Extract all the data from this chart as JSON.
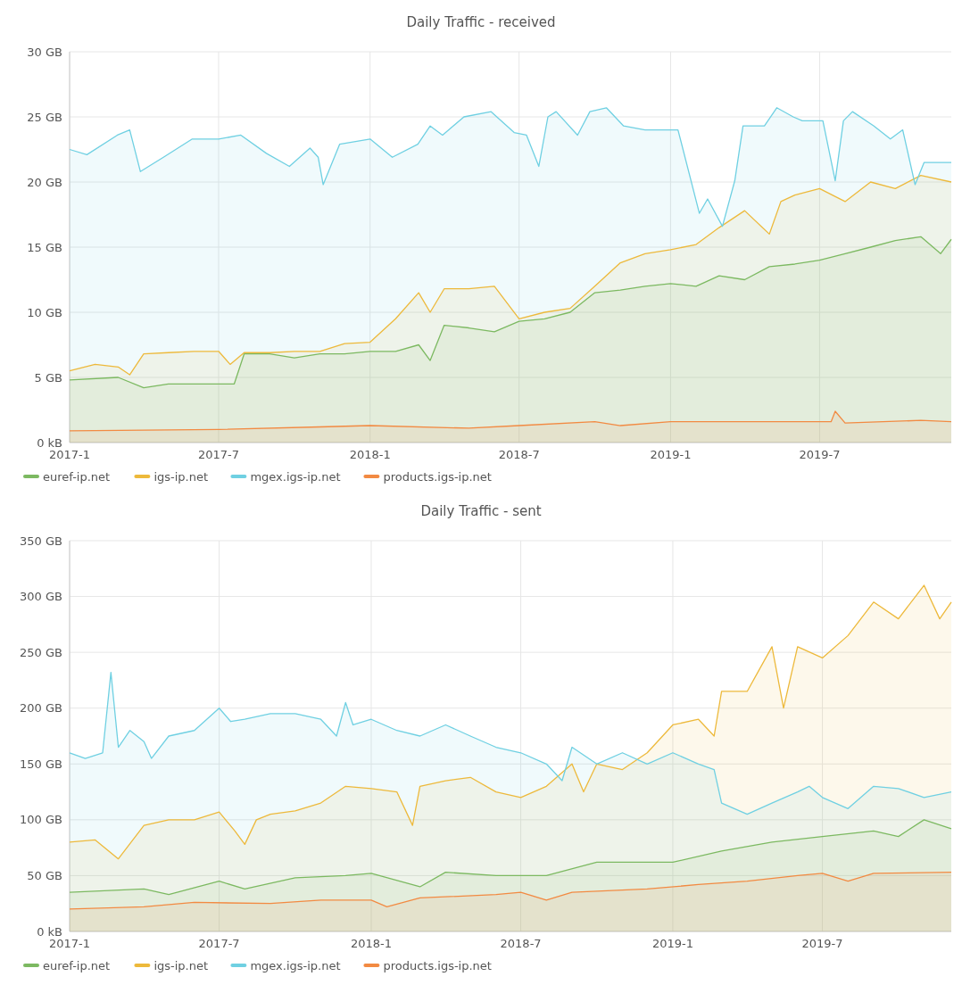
{
  "chart_data": [
    {
      "type": "area",
      "title": "Daily Traffic - received",
      "xlim": [
        "2017-01-01",
        "2019-12-08"
      ],
      "ylim": [
        0,
        30
      ],
      "xticks": [
        {
          "value": "2017-01-01",
          "label": "2017-1"
        },
        {
          "value": "2017-07-01",
          "label": "2017-7"
        },
        {
          "value": "2018-01-01",
          "label": "2018-1"
        },
        {
          "value": "2018-07-01",
          "label": "2018-7"
        },
        {
          "value": "2019-01-01",
          "label": "2019-1"
        },
        {
          "value": "2019-07-01",
          "label": "2019-7"
        }
      ],
      "yticks": [
        {
          "value": 0,
          "label": "0 kB"
        },
        {
          "value": 5,
          "label": "5 GB"
        },
        {
          "value": 10,
          "label": "10 GB"
        },
        {
          "value": 15,
          "label": "15 GB"
        },
        {
          "value": 20,
          "label": "20 GB"
        },
        {
          "value": 25,
          "label": "25 GB"
        },
        {
          "value": 30,
          "label": "30 GB"
        }
      ],
      "grid": true,
      "legend": "bottom",
      "marker": "none",
      "line_style": "solid",
      "series": [
        {
          "name": "euref-ip.net",
          "color": "#7cb961",
          "x": [
            "2017-01-01",
            "2017-03-01",
            "2017-04-01",
            "2017-05-01",
            "2017-06-01",
            "2017-07-20",
            "2017-08-01",
            "2017-09-01",
            "2017-10-01",
            "2017-11-01",
            "2017-12-01",
            "2018-01-01",
            "2018-02-01",
            "2018-03-01",
            "2018-03-15",
            "2018-04-01",
            "2018-05-01",
            "2018-06-01",
            "2018-07-01",
            "2018-08-01",
            "2018-09-01",
            "2018-10-01",
            "2018-11-01",
            "2018-12-01",
            "2019-01-01",
            "2019-02-01",
            "2019-03-01",
            "2019-04-01",
            "2019-05-01",
            "2019-06-01",
            "2019-07-01",
            "2019-08-01",
            "2019-09-01",
            "2019-10-01",
            "2019-11-01",
            "2019-11-25",
            "2019-12-08"
          ],
          "values": [
            4.8,
            5.0,
            4.2,
            4.5,
            4.5,
            4.5,
            6.8,
            6.8,
            6.5,
            6.8,
            6.8,
            7.0,
            7.0,
            7.5,
            6.3,
            9.0,
            8.8,
            8.5,
            9.3,
            9.5,
            10.0,
            11.5,
            11.7,
            12.0,
            12.2,
            12.0,
            12.8,
            12.5,
            13.5,
            13.7,
            14.0,
            14.5,
            15.0,
            15.5,
            15.8,
            14.5,
            15.6
          ]
        },
        {
          "name": "igs-ip.net",
          "color": "#edb93b",
          "x": [
            "2017-01-01",
            "2017-02-01",
            "2017-03-01",
            "2017-03-15",
            "2017-04-01",
            "2017-05-01",
            "2017-06-01",
            "2017-07-01",
            "2017-07-15",
            "2017-08-01",
            "2017-09-01",
            "2017-10-01",
            "2017-11-01",
            "2017-12-01",
            "2018-01-01",
            "2018-02-01",
            "2018-03-01",
            "2018-03-15",
            "2018-04-01",
            "2018-05-01",
            "2018-06-01",
            "2018-07-01",
            "2018-08-01",
            "2018-09-01",
            "2018-10-01",
            "2018-11-01",
            "2018-12-01",
            "2019-01-01",
            "2019-02-01",
            "2019-03-01",
            "2019-04-01",
            "2019-05-01",
            "2019-05-15",
            "2019-06-01",
            "2019-07-01",
            "2019-08-01",
            "2019-09-01",
            "2019-10-01",
            "2019-11-01",
            "2019-12-08"
          ],
          "values": [
            5.5,
            6.0,
            5.8,
            5.2,
            6.8,
            6.9,
            7.0,
            7.0,
            6.0,
            6.9,
            6.9,
            7.0,
            7.0,
            7.6,
            7.7,
            9.5,
            11.5,
            10.0,
            11.8,
            11.8,
            12.0,
            9.5,
            10.0,
            10.3,
            12.0,
            13.8,
            14.5,
            14.8,
            15.2,
            16.5,
            17.8,
            16.0,
            18.5,
            19.0,
            19.5,
            18.5,
            20.0,
            19.5,
            20.5,
            20.0
          ]
        },
        {
          "name": "mgex.igs-ip.net",
          "color": "#6fd0e2",
          "x": [
            "2017-01-01",
            "2017-01-22",
            "2017-02-28",
            "2017-03-15",
            "2017-03-28",
            "2017-04-25",
            "2017-05-30",
            "2017-07-01",
            "2017-07-28",
            "2017-08-28",
            "2017-09-25",
            "2017-10-20",
            "2017-10-30",
            "2017-11-05",
            "2017-11-25",
            "2018-01-01",
            "2018-01-28",
            "2018-02-28",
            "2018-03-15",
            "2018-03-30",
            "2018-04-25",
            "2018-05-28",
            "2018-06-25",
            "2018-07-10",
            "2018-07-25",
            "2018-08-05",
            "2018-08-15",
            "2018-09-10",
            "2018-09-25",
            "2018-10-15",
            "2018-11-05",
            "2018-12-01",
            "2019-01-01",
            "2019-01-10",
            "2019-02-05",
            "2019-02-15",
            "2019-03-05",
            "2019-03-20",
            "2019-03-30",
            "2019-04-25",
            "2019-05-10",
            "2019-05-30",
            "2019-06-10",
            "2019-06-25",
            "2019-07-05",
            "2019-07-20",
            "2019-07-30",
            "2019-08-10",
            "2019-09-05",
            "2019-09-25",
            "2019-10-10",
            "2019-10-25",
            "2019-11-05",
            "2019-12-08"
          ],
          "values": [
            22.5,
            22.1,
            23.6,
            24.0,
            20.8,
            21.9,
            23.3,
            23.3,
            23.6,
            22.2,
            21.2,
            22.6,
            21.9,
            19.8,
            22.9,
            23.3,
            21.9,
            22.9,
            24.3,
            23.6,
            25.0,
            25.4,
            23.8,
            23.6,
            21.2,
            25.0,
            25.4,
            23.6,
            25.4,
            25.7,
            24.3,
            24.0,
            24.0,
            24.0,
            17.6,
            18.7,
            16.6,
            20.1,
            24.3,
            24.3,
            25.7,
            25.0,
            24.7,
            24.7,
            24.7,
            20.1,
            24.7,
            25.4,
            24.3,
            23.3,
            24.0,
            19.8,
            21.5,
            21.5
          ]
        },
        {
          "name": "products.igs-ip.net",
          "color": "#f28a42",
          "x": [
            "2017-01-01",
            "2017-07-01",
            "2017-11-01",
            "2018-01-01",
            "2018-05-01",
            "2018-07-01",
            "2018-10-01",
            "2018-11-01",
            "2019-01-01",
            "2019-07-15",
            "2019-07-20",
            "2019-08-01",
            "2019-11-01",
            "2019-12-08"
          ],
          "values": [
            0.9,
            1.0,
            1.2,
            1.3,
            1.1,
            1.3,
            1.6,
            1.3,
            1.6,
            1.6,
            2.4,
            1.5,
            1.7,
            1.6
          ]
        }
      ]
    },
    {
      "type": "area",
      "title": "Daily Traffic - sent",
      "xlim": [
        "2017-01-01",
        "2019-12-04"
      ],
      "ylim": [
        0,
        350
      ],
      "xticks": [
        {
          "value": "2017-01-01",
          "label": "2017-1"
        },
        {
          "value": "2017-07-01",
          "label": "2017-7"
        },
        {
          "value": "2018-01-01",
          "label": "2018-1"
        },
        {
          "value": "2018-07-01",
          "label": "2018-7"
        },
        {
          "value": "2019-01-01",
          "label": "2019-1"
        },
        {
          "value": "2019-07-01",
          "label": "2019-7"
        }
      ],
      "yticks": [
        {
          "value": 0,
          "label": "0 kB"
        },
        {
          "value": 50,
          "label": "50 GB"
        },
        {
          "value": 100,
          "label": "100 GB"
        },
        {
          "value": 150,
          "label": "150 GB"
        },
        {
          "value": 200,
          "label": "200 GB"
        },
        {
          "value": 250,
          "label": "250 GB"
        },
        {
          "value": 300,
          "label": "300 GB"
        },
        {
          "value": 350,
          "label": "350 GB"
        }
      ],
      "grid": true,
      "legend": "bottom",
      "marker": "none",
      "line_style": "solid",
      "series": [
        {
          "name": "euref-ip.net",
          "color": "#7cb961",
          "x": [
            "2017-01-01",
            "2017-04-01",
            "2017-05-01",
            "2017-07-01",
            "2017-08-01",
            "2017-10-01",
            "2017-12-01",
            "2018-01-01",
            "2018-03-01",
            "2018-04-01",
            "2018-06-01",
            "2018-08-01",
            "2018-10-01",
            "2018-12-01",
            "2019-01-01",
            "2019-03-01",
            "2019-05-01",
            "2019-07-01",
            "2019-09-01",
            "2019-10-01",
            "2019-11-01",
            "2019-12-04"
          ],
          "values": [
            35,
            38,
            33,
            45,
            38,
            48,
            50,
            52,
            40,
            53,
            50,
            50,
            62,
            62,
            62,
            72,
            80,
            85,
            90,
            85,
            100,
            92
          ]
        },
        {
          "name": "igs-ip.net",
          "color": "#edb93b",
          "x": [
            "2017-01-01",
            "2017-02-01",
            "2017-03-01",
            "2017-04-01",
            "2017-05-01",
            "2017-06-01",
            "2017-07-01",
            "2017-07-20",
            "2017-08-01",
            "2017-08-15",
            "2017-09-01",
            "2017-10-01",
            "2017-11-01",
            "2017-12-01",
            "2018-01-01",
            "2018-02-01",
            "2018-02-20",
            "2018-03-01",
            "2018-04-01",
            "2018-05-01",
            "2018-06-01",
            "2018-07-01",
            "2018-08-01",
            "2018-09-01",
            "2018-09-15",
            "2018-10-01",
            "2018-11-01",
            "2018-12-01",
            "2019-01-01",
            "2019-02-01",
            "2019-02-20",
            "2019-03-01",
            "2019-04-01",
            "2019-05-01",
            "2019-05-15",
            "2019-06-01",
            "2019-07-01",
            "2019-08-01",
            "2019-09-01",
            "2019-10-01",
            "2019-11-01",
            "2019-11-20",
            "2019-12-04"
          ],
          "values": [
            80,
            82,
            65,
            95,
            100,
            100,
            107,
            90,
            78,
            100,
            105,
            108,
            115,
            130,
            128,
            125,
            95,
            130,
            135,
            138,
            125,
            120,
            130,
            150,
            125,
            150,
            145,
            160,
            185,
            190,
            175,
            215,
            215,
            255,
            200,
            255,
            245,
            265,
            295,
            280,
            310,
            280,
            295
          ]
        },
        {
          "name": "mgex.igs-ip.net",
          "color": "#6fd0e2",
          "x": [
            "2017-01-01",
            "2017-01-20",
            "2017-02-10",
            "2017-02-20",
            "2017-03-01",
            "2017-03-15",
            "2017-04-01",
            "2017-04-10",
            "2017-05-01",
            "2017-06-01",
            "2017-07-01",
            "2017-07-15",
            "2017-08-01",
            "2017-09-01",
            "2017-10-01",
            "2017-11-01",
            "2017-11-20",
            "2017-12-01",
            "2017-12-10",
            "2018-01-01",
            "2018-02-01",
            "2018-03-01",
            "2018-04-01",
            "2018-05-01",
            "2018-06-01",
            "2018-07-01",
            "2018-08-01",
            "2018-08-20",
            "2018-09-01",
            "2018-10-01",
            "2018-11-01",
            "2018-12-01",
            "2019-01-01",
            "2019-02-01",
            "2019-02-20",
            "2019-03-01",
            "2019-04-01",
            "2019-05-01",
            "2019-06-01",
            "2019-06-15",
            "2019-07-01",
            "2019-08-01",
            "2019-09-01",
            "2019-10-01",
            "2019-11-01",
            "2019-12-04"
          ],
          "values": [
            160,
            155,
            160,
            232,
            165,
            180,
            170,
            155,
            175,
            180,
            200,
            188,
            190,
            195,
            195,
            190,
            175,
            205,
            185,
            190,
            180,
            175,
            185,
            175,
            165,
            160,
            150,
            135,
            165,
            150,
            160,
            150,
            160,
            150,
            145,
            115,
            105,
            115,
            125,
            130,
            120,
            110,
            130,
            128,
            120,
            125
          ]
        },
        {
          "name": "products.igs-ip.net",
          "color": "#f28a42",
          "x": [
            "2017-01-01",
            "2017-04-01",
            "2017-06-01",
            "2017-09-01",
            "2017-11-01",
            "2018-01-01",
            "2018-01-20",
            "2018-03-01",
            "2018-06-01",
            "2018-07-01",
            "2018-08-01",
            "2018-09-01",
            "2018-12-01",
            "2019-02-01",
            "2019-04-01",
            "2019-06-01",
            "2019-07-01",
            "2019-08-01",
            "2019-09-01",
            "2019-12-04"
          ],
          "values": [
            20,
            22,
            26,
            25,
            28,
            28,
            22,
            30,
            33,
            35,
            28,
            35,
            38,
            42,
            45,
            50,
            52,
            45,
            52,
            53
          ]
        }
      ]
    }
  ]
}
